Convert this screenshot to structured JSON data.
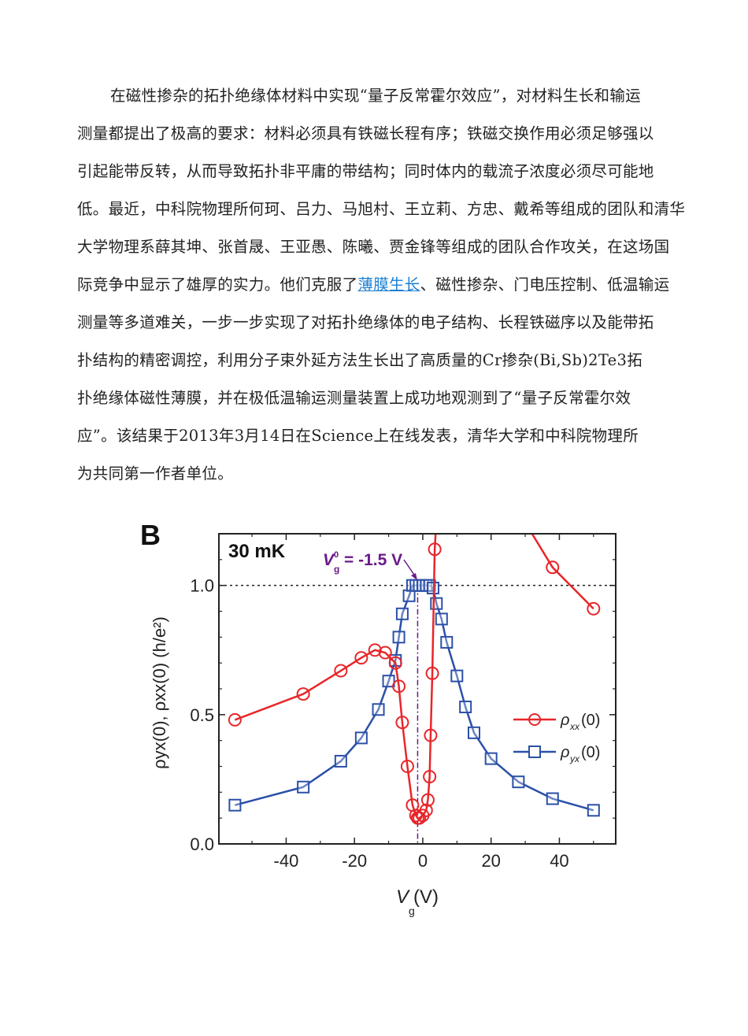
{
  "paragraph": {
    "lines": [
      "在磁性掺杂的拓扑绝缘体材料中实现“量子反常霍尔效应”，对材料生长和输运",
      "测量都提出了极高的要求：材料必须具有铁磁长程有序；铁磁交换作用必须足够强以",
      "引起能带反转，从而导致拓扑非平庸的带结构；同时体内的载流子浓度必须尽可能地",
      "低。最近，中科院物理所何珂、吕力、马旭村、王立莉、方忠、戴希等组成的团队和清华",
      "大学物理系薛其坤、张首晟、王亚愚、陈曦、贾金锋等组成的团队合作攻关，在这场国",
      "际竞争中显示了雄厚的实力。他们克服了",
      "测量等多道难关，一步一步实现了对拓扑绝缘体的电子结构、长程铁磁序以及能带拓",
      "扑结构的精密调控，利用分子束外延方法生长出了高质量的Cr掺杂(Bi,Sb)2Te3拓",
      "扑绝缘体磁性薄膜，并在极低温输运测量装置上成功地观测到了“量子反常霍尔效",
      "应”。该结果于2013年3月14日在Science上在线发表，清华大学和中科院物理所",
      "为共同第一作者单位。"
    ],
    "link_text": "薄膜生长",
    "line6_tail": "、磁性掺杂、门电压控制、低温输运"
  },
  "chart_data": {
    "type": "scatter",
    "panel_label": "B",
    "annotation_temp": "30 mK",
    "annotation_vg0": "= -1.5 V",
    "annotation_vg0_symbol": "V",
    "annotation_vg0_sup": "0",
    "annotation_vg0_sub": "g",
    "vg0": -1.5,
    "xlabel": "V",
    "xlabel_sub": "g",
    "xlabel_unit": " (V)",
    "ylabel": "ρyx(0), ρxx(0) (h/e²)",
    "xlim": [
      -59.7,
      56.5
    ],
    "ylim": [
      0,
      1.2
    ],
    "xticks": [
      -40,
      -20,
      0,
      20,
      40
    ],
    "xtick_labels": [
      "-40",
      "-20",
      "0",
      "20",
      "40"
    ],
    "yticks": [
      0,
      0.5,
      1.0
    ],
    "ytick_labels": [
      "0.0",
      "0.5",
      "1.0"
    ],
    "reference_line_y": 1.0,
    "legend_position": "center-right",
    "colors": {
      "rho_xx": "#e8262a",
      "rho_yx": "#2b50a8",
      "annotation": "#6a1b8a"
    },
    "series": [
      {
        "name": "ρxx(0)",
        "legend_main": "ρ",
        "legend_sub": "xx",
        "legend_tail": "(0)",
        "marker": "circle",
        "x": [
          -55,
          -35,
          -24,
          -18,
          -14,
          -11,
          -8,
          -7,
          -6,
          -4.5,
          -3,
          -2,
          -1.5,
          -1,
          0,
          1,
          1.5,
          2,
          2.3,
          2.8,
          3.5
        ],
        "y": [
          0.48,
          0.58,
          0.67,
          0.72,
          0.75,
          0.74,
          0.7,
          0.61,
          0.47,
          0.3,
          0.15,
          0.11,
          0.1,
          0.1,
          0.11,
          0.13,
          0.17,
          0.26,
          0.42,
          0.66,
          1.14
        ],
        "x2": [
          32,
          38,
          50
        ],
        "y2": [
          1.2,
          1.07,
          0.91
        ]
      },
      {
        "name": "ρyx(0)",
        "legend_main": "ρ",
        "legend_sub": "yx",
        "legend_tail": "(0)",
        "marker": "square",
        "x": [
          -55,
          -35,
          -24,
          -18,
          -13,
          -10,
          -8,
          -7,
          -6,
          -4,
          -3,
          -2,
          -1,
          0,
          1,
          2,
          3,
          4,
          5.5,
          7,
          10,
          12.5,
          15,
          20,
          28,
          38,
          50
        ],
        "y": [
          0.15,
          0.22,
          0.32,
          0.41,
          0.52,
          0.63,
          0.71,
          0.8,
          0.89,
          0.96,
          1.0,
          1.0,
          1.0,
          1.0,
          1.0,
          1.0,
          0.99,
          0.93,
          0.87,
          0.78,
          0.65,
          0.53,
          0.43,
          0.33,
          0.24,
          0.175,
          0.13
        ]
      }
    ]
  }
}
